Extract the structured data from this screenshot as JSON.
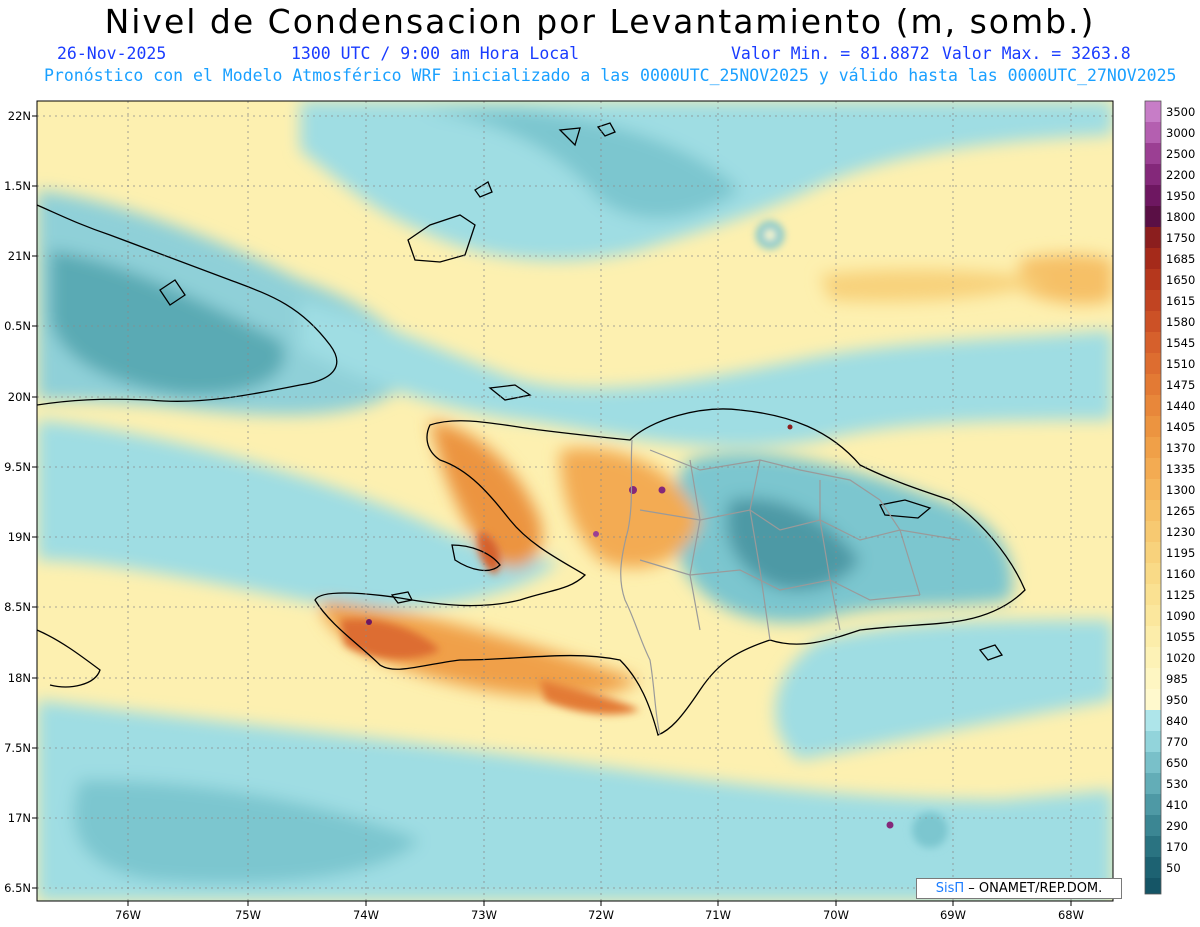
{
  "title": "Nivel de Condensacion por Levantamiento (m, somb.)",
  "subtitle": {
    "date": "26-Nov-2025",
    "time": "1300 UTC / 9:00 am Hora Local",
    "min": "Valor Min. = 81.8872",
    "max": "Valor Max. = 3263.8",
    "forecast": "Pronóstico con el Modelo Atmosférico WRF inicializado a las 0000UTC_25NOV2025 y válido hasta las  0000UTC_27NOV2025"
  },
  "map": {
    "lon_range": [
      -76.65,
      -67.6
    ],
    "lat_range": [
      6.35,
      22.15
    ],
    "lat_ticks": [
      "22N",
      "1.5N",
      "21N",
      "0.5N",
      "20N",
      "9.5N",
      "19N",
      "8.5N",
      "18N",
      "7.5N",
      "17N",
      "6.5N"
    ],
    "lon_ticks": [
      "76W",
      "75W",
      "74W",
      "73W",
      "72W",
      "71W",
      "70W",
      "69W",
      "68W"
    ]
  },
  "colorbar": {
    "labels": [
      "3500",
      "3000",
      "2500",
      "2200",
      "1950",
      "1800",
      "1750",
      "1685",
      "1650",
      "1615",
      "1580",
      "1545",
      "1510",
      "1475",
      "1440",
      "1405",
      "1370",
      "1335",
      "1300",
      "1265",
      "1230",
      "1195",
      "1160",
      "1125",
      "1090",
      "1055",
      "1020",
      "985",
      "950",
      "840",
      "770",
      "650",
      "530",
      "410",
      "290",
      "170",
      "50"
    ],
    "colors": [
      "#c77dc7",
      "#b45fb0",
      "#9b3f93",
      "#84287a",
      "#6e1761",
      "#5a0f45",
      "#8b1e1e",
      "#a52a1a",
      "#b5371d",
      "#c14422",
      "#cc5126",
      "#d6602c",
      "#dd6d30",
      "#e37a34",
      "#e8873a",
      "#ec9440",
      "#f0a048",
      "#f3ab52",
      "#f5b65c",
      "#f6c066",
      "#f7c971",
      "#f8d27c",
      "#f9da87",
      "#fae192",
      "#fbe79d",
      "#fcedaa",
      "#fdf2b6",
      "#fef6c2",
      "#fff9cd",
      "#aee5ea",
      "#92d4db",
      "#79c0c9",
      "#63adb7",
      "#4e99a5",
      "#3b8693",
      "#2a7381",
      "#1d6272"
    ],
    "bottom_color": "#155566"
  },
  "credit": {
    "sis": "SisΠ",
    "org": "– ONAMET/REP.DOM."
  }
}
